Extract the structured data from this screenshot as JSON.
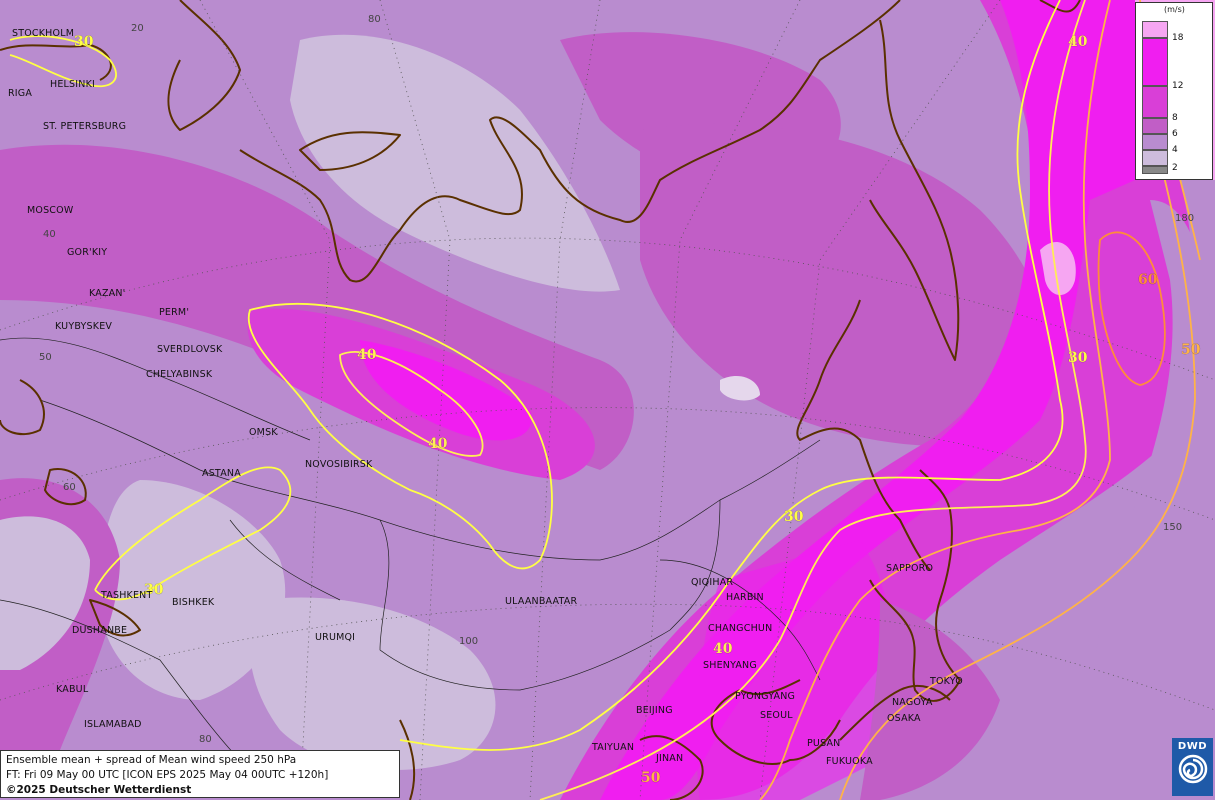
{
  "legend": {
    "unit": "(m/s)",
    "levels": [
      "18",
      "12",
      "8",
      "6",
      "4",
      "2"
    ]
  },
  "info": {
    "line1": "Ensemble mean + spread of Mean wind speed 250 hPa",
    "line2": "FT: Fri 09 May 00 UTC [ICON EPS 2025 May 04 00UTC +120h]",
    "copyright": "©2025 Deutscher Wetterdienst"
  },
  "logo": {
    "text": "DWD"
  },
  "colors": {
    "spread_2_4": "#cdbcdc",
    "spread_4_6": "#b98ccf",
    "spread_6_8": "#c15ec6",
    "spread_8_12": "#d93fd7",
    "spread_12_18": "#f01ef0",
    "spread_18_plus": "#f6a6f2",
    "isotach_30": "#ffff44",
    "isotach_40": "#ffee55",
    "isotach_50": "#ffb347",
    "isotach_60": "#ff8c3a",
    "coastline": "#5a3000"
  },
  "cities": [
    "STOCKHOLM",
    "HELSINKI",
    "RIGA",
    "ST. PETERSBURG",
    "MOSCOW",
    "GOR'KIY",
    "KAZAN'",
    "PERM'",
    "KUYBYSKEV",
    "SVERDLOVSK",
    "CHELYABINSK",
    "OMSK",
    "NOVOSIBIRSK",
    "ASTANA",
    "TASHKENT",
    "BISHKEK",
    "DUSHANBE",
    "URUMQI",
    "KABUL",
    "ISLAMABAD",
    "ULAANBAATAR",
    "QIQIHAR",
    "HARBIN",
    "CHANGCHUN",
    "SHENYANG",
    "BEIJING",
    "PYONGYANG",
    "SEOUL",
    "TAIYUAN",
    "JINAN",
    "PUSAN",
    "FUKUOKA",
    "SAPPORO",
    "TOKYO",
    "NAGOYA",
    "OSAKA"
  ],
  "grid_labels": [
    "20",
    "80",
    "40",
    "50",
    "60",
    "180",
    "100",
    "80",
    "150"
  ],
  "isotach_labels": [
    "30",
    "40",
    "40",
    "40",
    "30",
    "30",
    "40",
    "50",
    "60",
    "30",
    "50"
  ]
}
